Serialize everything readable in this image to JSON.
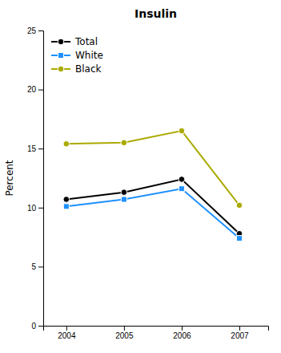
{
  "chart_data": {
    "type": "line",
    "title": "Insulin",
    "ylabel": "Percent",
    "x": [
      2004,
      2005,
      2006,
      2007
    ],
    "series": [
      {
        "name": "Total",
        "color": "#000000",
        "marker": "circle",
        "values": [
          10.7,
          11.3,
          12.4,
          7.8
        ]
      },
      {
        "name": "White",
        "color": "#1E90FF",
        "marker": "square",
        "values": [
          10.1,
          10.7,
          11.6,
          7.4
        ]
      },
      {
        "name": "Black",
        "color": "#AAAA00",
        "marker": "circle",
        "values": [
          15.4,
          15.5,
          16.5,
          10.2
        ]
      }
    ],
    "xlim": [
      2003.6,
      2007.5
    ],
    "xticks": [
      2004,
      2005,
      2006,
      2007
    ],
    "ylim": [
      0,
      25
    ],
    "yticks": [
      0,
      5,
      10,
      15,
      20,
      25
    ],
    "grid": false,
    "legend": "upper left"
  }
}
